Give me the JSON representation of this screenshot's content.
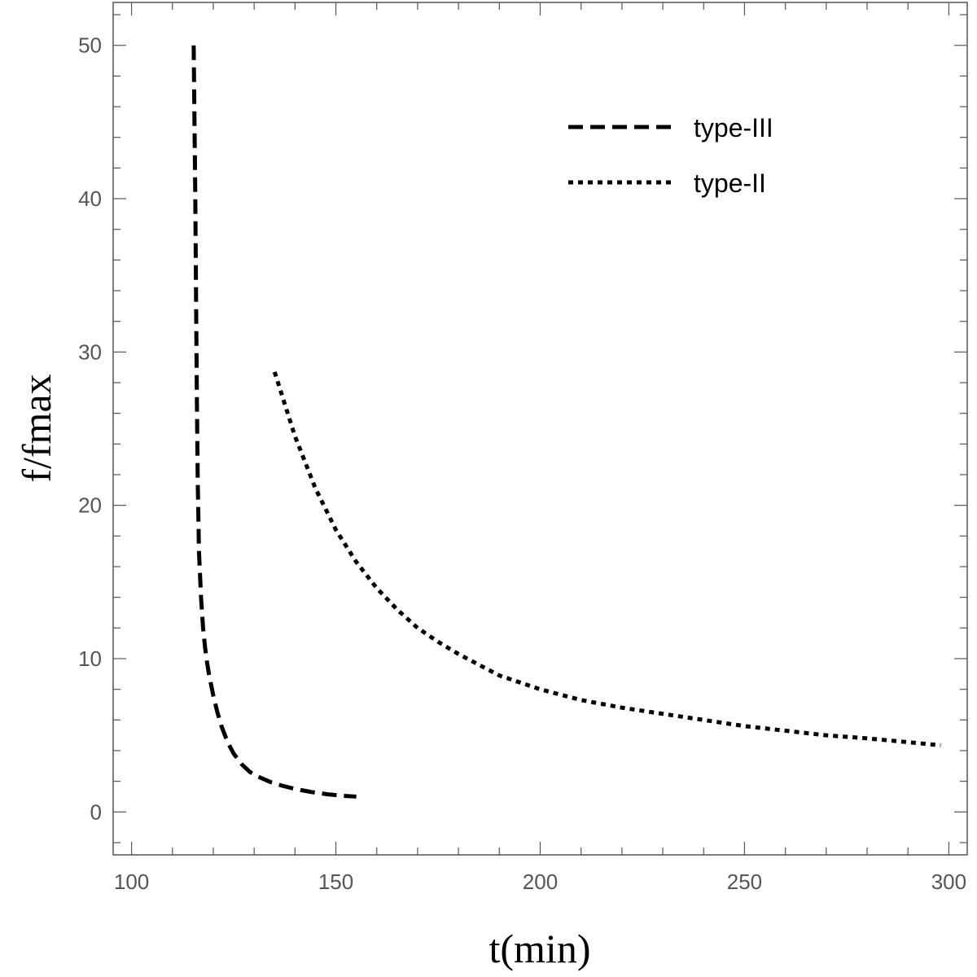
{
  "chart_data": {
    "type": "line",
    "title": "",
    "xlabel": "t(min)",
    "ylabel": "f/fmax",
    "xlim": [
      95.5,
      304.5
    ],
    "ylim": [
      -2.8,
      52.8
    ],
    "grid": false,
    "legend_position": "top-right",
    "x_ticks": [
      100,
      150,
      200,
      250,
      300
    ],
    "x_tick_labels": [
      "100",
      "150",
      "200",
      "250",
      "300"
    ],
    "x_minor_step": 10,
    "y_ticks": [
      0,
      10,
      20,
      30,
      40,
      50
    ],
    "y_tick_labels": [
      "0",
      "10",
      "20",
      "30",
      "40",
      "50"
    ],
    "y_minor_step": 2,
    "series": [
      {
        "name": "type-III",
        "style": "dashed",
        "color": "#000000",
        "x": [
          115.2,
          115.4,
          115.6,
          115.8,
          116.0,
          116.2,
          116.5,
          117.0,
          117.5,
          118.0,
          118.5,
          119.0,
          120.0,
          121.0,
          122.0,
          123.0,
          124.0,
          125.0,
          127.0,
          129.0,
          131.0,
          134.0,
          137.0,
          140.0,
          144.0,
          148.0,
          152.0,
          155.0
        ],
        "y": [
          50.0,
          45.0,
          40.0,
          33.0,
          26.5,
          21.5,
          17.0,
          14.0,
          12.0,
          10.7,
          9.7,
          8.9,
          7.6,
          6.5,
          5.6,
          4.9,
          4.3,
          3.8,
          3.1,
          2.6,
          2.3,
          1.95,
          1.7,
          1.5,
          1.3,
          1.15,
          1.05,
          1.0
        ]
      },
      {
        "name": "type-II",
        "style": "dotted",
        "color": "#000000",
        "x": [
          135,
          140,
          145,
          150,
          155,
          160,
          165,
          170,
          175,
          180,
          190,
          200,
          210,
          220,
          230,
          240,
          250,
          260,
          270,
          280,
          290,
          298
        ],
        "y": [
          28.7,
          24.5,
          21.1,
          18.4,
          16.3,
          14.6,
          13.2,
          12.0,
          11.1,
          10.3,
          8.9,
          8.0,
          7.3,
          6.8,
          6.4,
          6.0,
          5.6,
          5.3,
          5.0,
          4.8,
          4.55,
          4.35
        ]
      }
    ]
  }
}
